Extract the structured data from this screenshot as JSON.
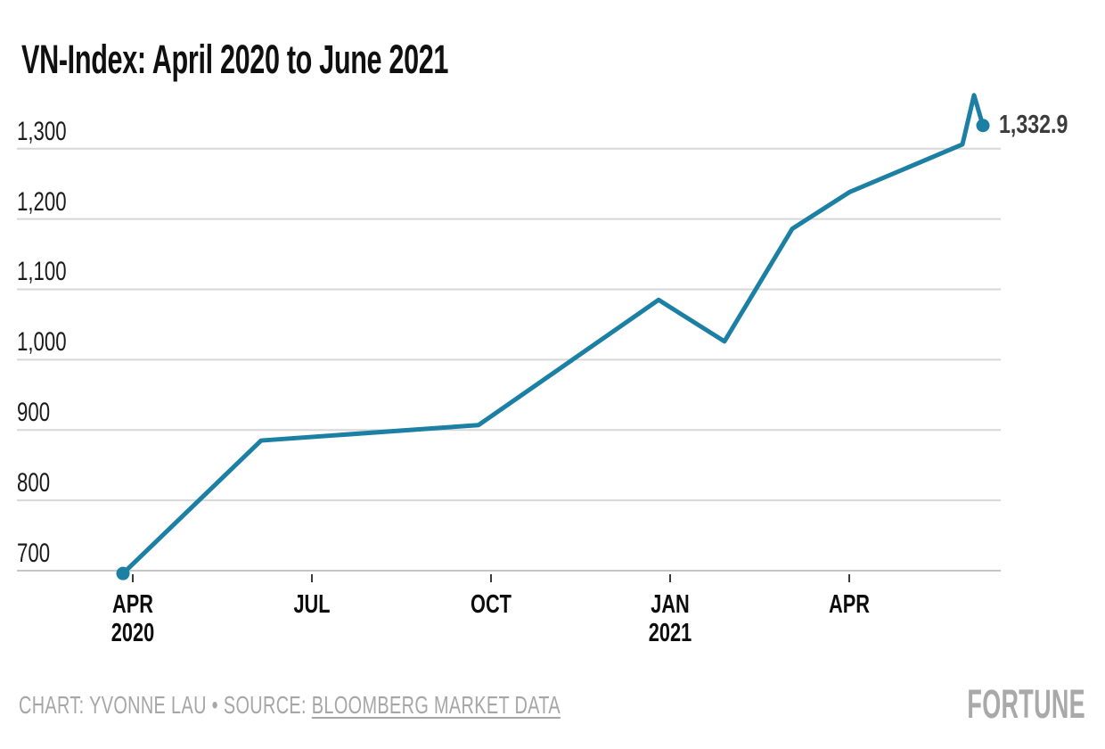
{
  "title": "VN-Index: April 2020 to June 2021",
  "footer": {
    "credit_prefix": "CHART: YVONNE LAU • SOURCE: ",
    "source_link": "BLOOMBERG MARKET DATA",
    "logo": "FORTUNE"
  },
  "chart_data": {
    "type": "line",
    "title": "VN-Index: April 2020 to June 2021",
    "series_name": "VN-Index",
    "points": [
      {
        "label": "Apr 2020",
        "month_offset": -0.164,
        "value": 696,
        "dot": true
      },
      {
        "label": "Jun 2020",
        "month_offset": 2.149,
        "value": 885
      },
      {
        "label": "Late Sep 2020",
        "month_offset": 5.791,
        "value": 907
      },
      {
        "label": "Late Dec 2020",
        "month_offset": 8.806,
        "value": 1085
      },
      {
        "label": "Late Jan 2021",
        "month_offset": 9.91,
        "value": 1026
      },
      {
        "label": "Mar 2021",
        "month_offset": 11.045,
        "value": 1186
      },
      {
        "label": "Apr 2021",
        "month_offset": 12.0,
        "value": 1238
      },
      {
        "label": "Late May 2021",
        "month_offset": 13.896,
        "value": 1306
      },
      {
        "label": "Early Jun 2021 peak",
        "month_offset": 14.09,
        "value": 1376
      },
      {
        "label": "Jun 2021 latest",
        "month_offset": 14.239,
        "value": 1332.9,
        "dot": true
      }
    ],
    "end_label": "1,332.9",
    "x_ticks": [
      {
        "month_offset": 0,
        "line1": "APR",
        "line2": "2020"
      },
      {
        "month_offset": 3,
        "line1": "JUL",
        "line2": ""
      },
      {
        "month_offset": 6,
        "line1": "OCT",
        "line2": ""
      },
      {
        "month_offset": 9,
        "line1": "JAN",
        "line2": "2021"
      },
      {
        "month_offset": 12,
        "line1": "APR",
        "line2": ""
      }
    ],
    "y_ticks": [
      700,
      800,
      900,
      1000,
      1100,
      1200,
      1300
    ],
    "y_tick_labels": [
      "700",
      "800",
      "900",
      "1,000",
      "1,100",
      "1,200",
      "1,300"
    ],
    "ylim": [
      650,
      1395
    ],
    "grid": true,
    "legend": "none",
    "colors": {
      "line": "#1b80a4",
      "grid": "#d7d7d7",
      "baseline": "#c6c6c6",
      "tick": "#3a3a3a",
      "value_label": "#3c3c3c",
      "title": "#101010",
      "axis_label": "#0d0d0d",
      "footer": "#a6a6a6",
      "logo": "#a9a9a9",
      "background": "#ffffff"
    }
  }
}
